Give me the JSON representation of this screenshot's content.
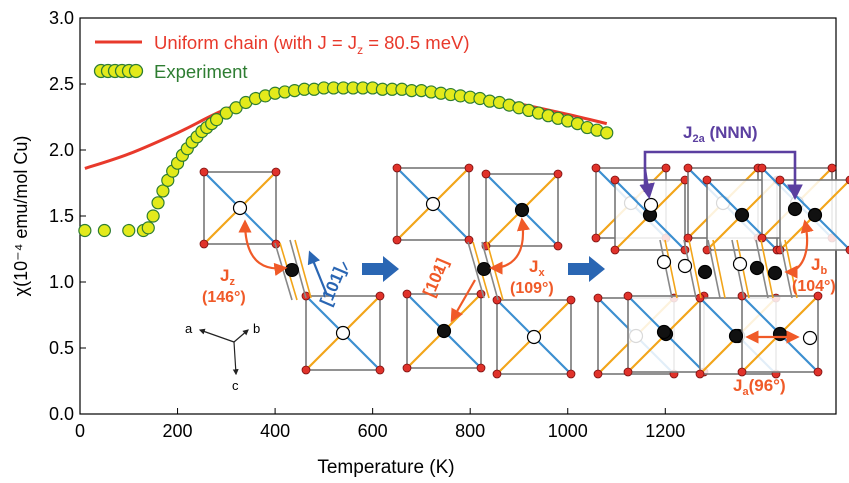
{
  "chart_data": {
    "type": "line",
    "xlabel": "Temperature (K)",
    "ylabel": "χ(10⁻⁴ emu/mol Cu)",
    "xlim": [
      0,
      1550
    ],
    "ylim": [
      0,
      3.0
    ],
    "x_ticks": [
      0,
      200,
      400,
      600,
      800,
      1000,
      1200
    ],
    "y_ticks": [
      0.0,
      0.5,
      1.0,
      1.5,
      2.0,
      2.5,
      3.0
    ],
    "x_tick_labels": [
      "0",
      "200",
      "400",
      "600",
      "800",
      "1000",
      "1200"
    ],
    "y_tick_labels": [
      "0.0",
      "0.5",
      "1.0",
      "1.5",
      "2.0",
      "2.5",
      "3.0"
    ],
    "legend_position": "top-left",
    "series": [
      {
        "name": "Uniform chain (with J = Jz = 80.5 meV)",
        "style": "line",
        "color": "#e8392b",
        "x": [
          10,
          100,
          200,
          300,
          400,
          500,
          600,
          700,
          800,
          900,
          1000,
          1080
        ],
        "y": [
          1.86,
          1.97,
          2.13,
          2.31,
          2.42,
          2.47,
          2.48,
          2.46,
          2.41,
          2.35,
          2.27,
          2.2
        ]
      },
      {
        "name": "Experiment",
        "style": "markers",
        "color": "#2e7d32",
        "marker_fill": "#e3ea1b",
        "x": [
          10,
          50,
          100,
          130,
          140,
          150,
          160,
          170,
          180,
          190,
          200,
          210,
          220,
          230,
          240,
          250,
          260,
          270,
          280,
          300,
          320,
          340,
          360,
          380,
          400,
          420,
          440,
          460,
          480,
          500,
          520,
          540,
          560,
          580,
          600,
          620,
          640,
          660,
          680,
          700,
          720,
          740,
          760,
          780,
          800,
          820,
          840,
          860,
          880,
          900,
          920,
          940,
          960,
          980,
          1000,
          1020,
          1040,
          1060,
          1080
        ],
        "y": [
          1.39,
          1.39,
          1.39,
          1.39,
          1.41,
          1.5,
          1.6,
          1.69,
          1.77,
          1.84,
          1.9,
          1.96,
          2.01,
          2.06,
          2.1,
          2.14,
          2.17,
          2.2,
          2.23,
          2.28,
          2.32,
          2.36,
          2.39,
          2.41,
          2.43,
          2.44,
          2.45,
          2.46,
          2.46,
          2.47,
          2.47,
          2.47,
          2.47,
          2.47,
          2.47,
          2.46,
          2.46,
          2.46,
          2.45,
          2.45,
          2.44,
          2.43,
          2.42,
          2.41,
          2.4,
          2.39,
          2.37,
          2.36,
          2.34,
          2.32,
          2.3,
          2.28,
          2.26,
          2.24,
          2.22,
          2.2,
          2.17,
          2.15,
          2.13
        ]
      }
    ]
  },
  "legend": {
    "line_label": "Uniform chain (with J = J",
    "line_sub": "z",
    "line_tail": " = 80.5 meV)",
    "exp_label": "Experiment"
  },
  "inset": {
    "axes": {
      "a": "a",
      "b": "b",
      "c": "c"
    },
    "dir1": "[101]",
    "dir2": "[101]",
    "jz": {
      "main": "J",
      "sub": "z",
      "angle": "(146°)"
    },
    "jx": {
      "main": "J",
      "sub": "x",
      "angle": "(109°)"
    },
    "jb": {
      "main": "J",
      "sub": "b",
      "angle": "(104°)"
    },
    "ja": {
      "main": "J",
      "sub": "a",
      "angle": "(96°)"
    },
    "j2a": {
      "main": "J",
      "sub": "2a",
      "tail": " (NNN)"
    }
  },
  "colors": {
    "uniform_chain": "#e8392b",
    "experiment_edge": "#2e7d32",
    "experiment_fill": "#e3ea1b",
    "exchange_label": "#f05a28",
    "dir_blue": "#2a66b3",
    "nnn_purple": "#5b3fa0",
    "bond_blue": "#3c8fd0",
    "bond_orange": "#f2a51a"
  }
}
